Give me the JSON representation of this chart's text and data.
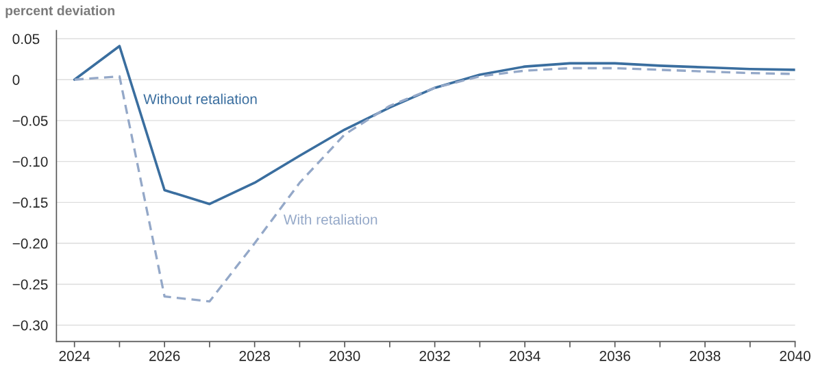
{
  "chart_data": {
    "type": "line",
    "ylabel": "percent deviation",
    "x": [
      2024,
      2025,
      2026,
      2027,
      2028,
      2029,
      2030,
      2031,
      2032,
      2033,
      2034,
      2035,
      2036,
      2037,
      2038,
      2039,
      2040
    ],
    "series": [
      {
        "name": "Without retaliation",
        "color": "#3a6e9f",
        "line_style": "solid",
        "values": [
          0,
          0.041,
          -0.135,
          -0.152,
          -0.126,
          -0.093,
          -0.061,
          -0.034,
          -0.01,
          0.006,
          0.016,
          0.02,
          0.02,
          0.017,
          0.015,
          0.013,
          0.012
        ]
      },
      {
        "name": "With retaliation",
        "color": "#94a8c8",
        "line_style": "dashed",
        "values": [
          0,
          0.004,
          -0.265,
          -0.271,
          -0.2,
          -0.126,
          -0.067,
          -0.032,
          -0.01,
          0.004,
          0.011,
          0.014,
          0.014,
          0.012,
          0.01,
          0.008,
          0.007
        ]
      }
    ],
    "xlim": [
      2023.6,
      2040
    ],
    "xticks": [
      2024,
      {
        "value": 2025,
        "label": null
      },
      2026,
      {
        "value": 2027,
        "label": null
      },
      2028,
      {
        "value": 2029,
        "label": null
      },
      2030,
      {
        "value": 2031,
        "label": null
      },
      2032,
      {
        "value": 2033,
        "label": null
      },
      2034,
      {
        "value": 2035,
        "label": null
      },
      2036,
      {
        "value": 2037,
        "label": null
      },
      2038,
      {
        "value": 2039,
        "label": null
      },
      2040
    ],
    "ylim": [
      -0.32,
      0.06
    ],
    "yticks": [
      {
        "value": 0.05,
        "label": "0.05"
      },
      0,
      {
        "value": -0.05,
        "label": "−0.05"
      },
      {
        "value": -0.1,
        "label": "−0.10"
      },
      {
        "value": -0.15,
        "label": "−0.15"
      },
      {
        "value": -0.2,
        "label": "−0.20"
      },
      {
        "value": -0.25,
        "label": "−0.25"
      },
      {
        "value": -0.3,
        "label": "−0.30"
      }
    ],
    "grid": "y",
    "legend": false
  }
}
